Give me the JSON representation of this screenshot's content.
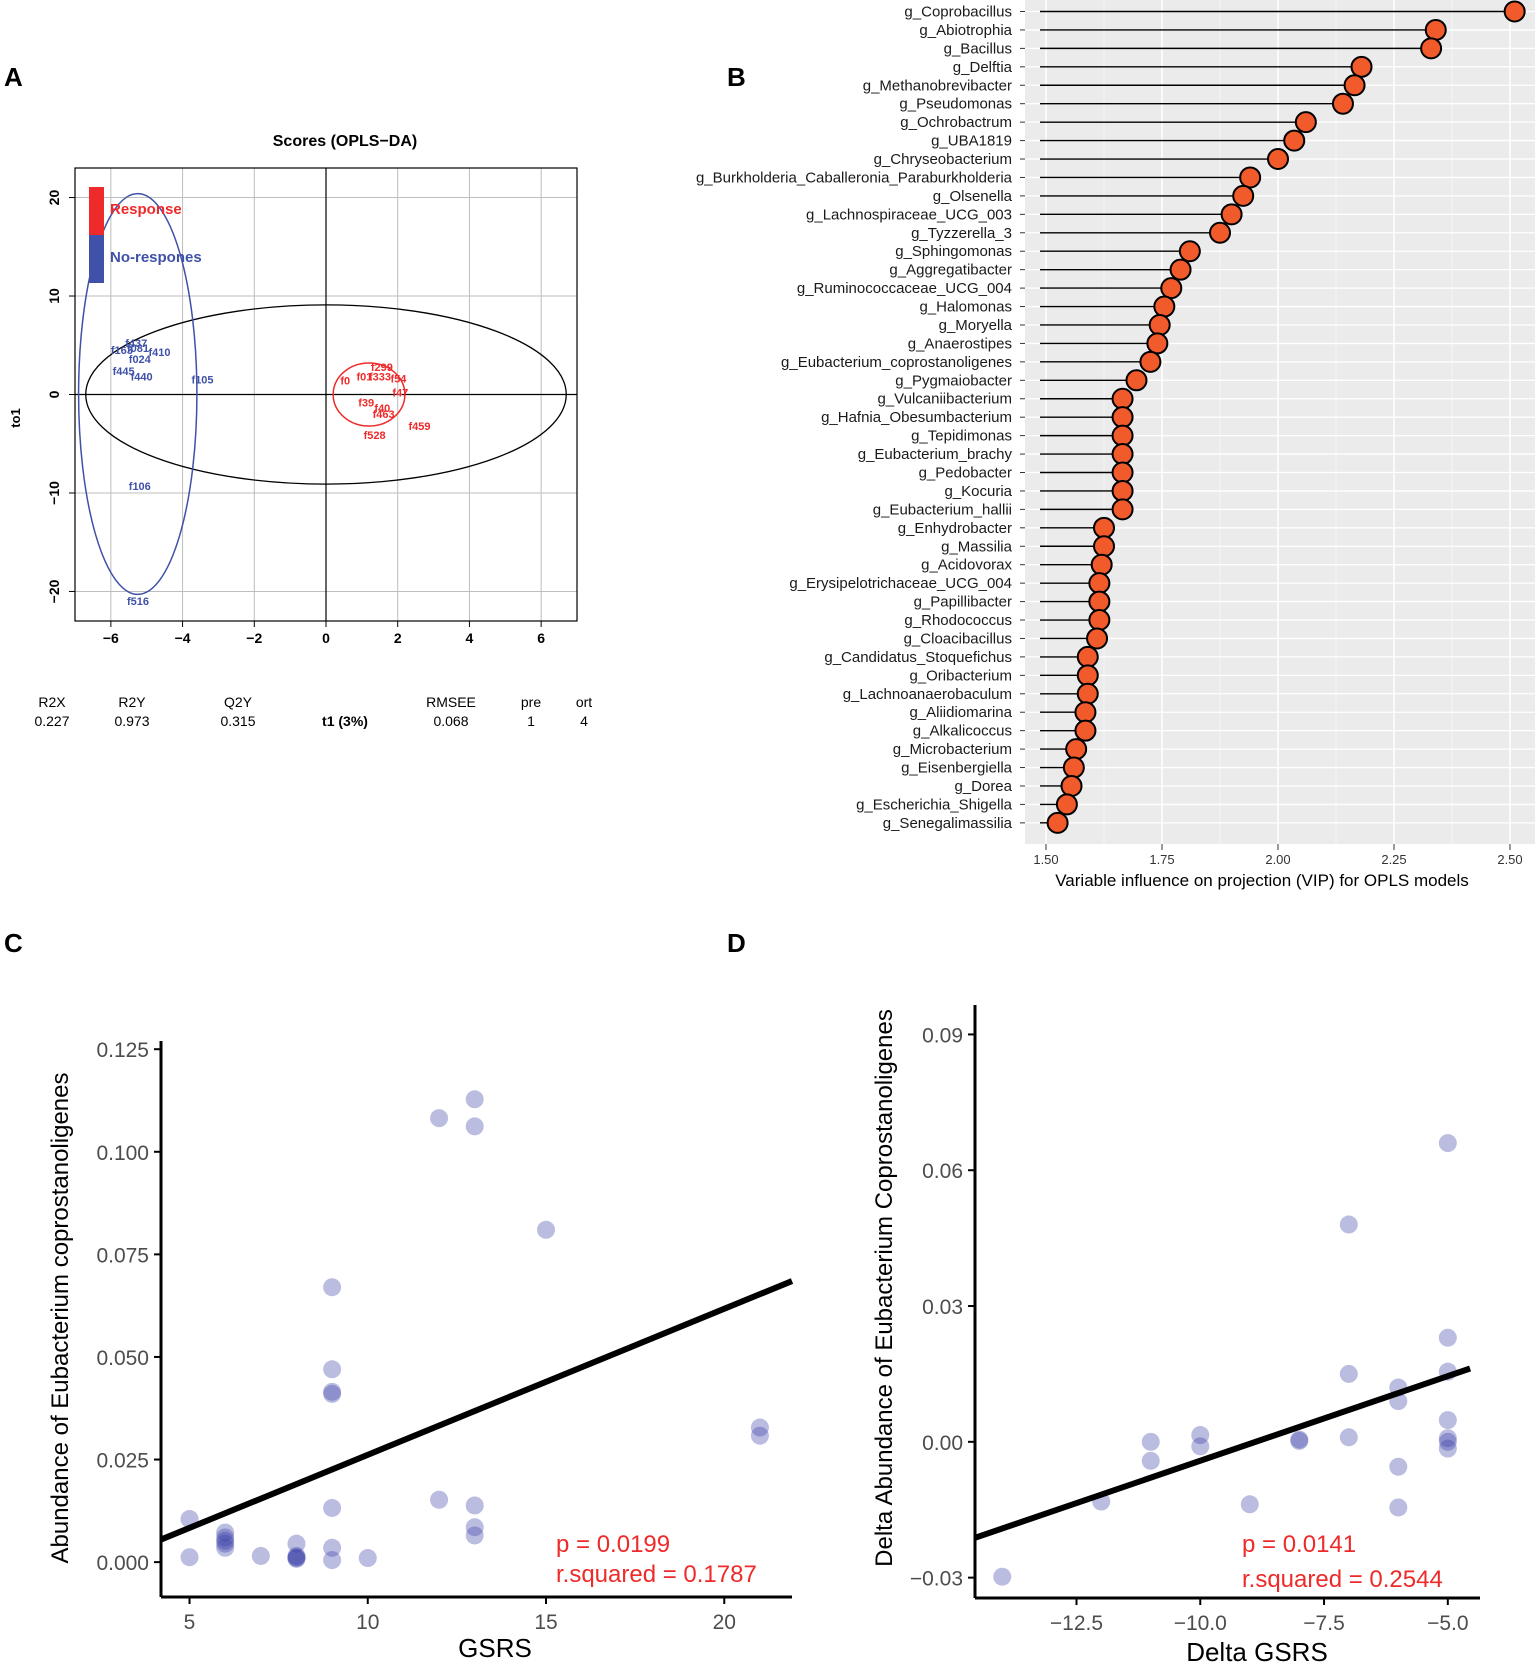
{
  "panels": {
    "a": "A",
    "b": "B",
    "c": "C",
    "d": "D"
  },
  "chart_data": [
    {
      "id": "A",
      "type": "scatter",
      "title": "Scores (OPLS−DA)",
      "xlabel": "t1 (3%)",
      "ylabel": "to1",
      "xlim": [
        -7,
        7
      ],
      "ylim": [
        -23,
        23
      ],
      "xticks": [
        -6,
        -4,
        -2,
        0,
        2,
        4,
        6
      ],
      "yticks": [
        20,
        10,
        0,
        -10,
        -20
      ],
      "xtick_labels": [
        "−6",
        "−4",
        "−2",
        "0",
        "2",
        "4",
        "6"
      ],
      "ytick_labels": [
        "20",
        "10",
        "0",
        "−10",
        "−20"
      ],
      "legend": [
        {
          "name": "Response",
          "color": "#ee2a2a"
        },
        {
          "name": "No-respones",
          "color": "#3f51a8"
        }
      ],
      "stats_headers": [
        "R2X",
        "R2Y",
        "Q2Y",
        "RMSEE",
        "pre",
        "ort"
      ],
      "stats_values": [
        "0.227",
        "0.973",
        "0.315",
        "0.068",
        "1",
        "4"
      ],
      "no_response_labels": [
        {
          "label": "f437",
          "x": -5.6,
          "y": 4.8
        },
        {
          "label": "f163",
          "x": -6.0,
          "y": 4.1
        },
        {
          "label": "f081",
          "x": -5.55,
          "y": 4.3
        },
        {
          "label": "f410",
          "x": -4.95,
          "y": 3.9
        },
        {
          "label": "f024",
          "x": -5.5,
          "y": 3.2
        },
        {
          "label": "f445",
          "x": -5.95,
          "y": 2.0
        },
        {
          "label": "f440",
          "x": -5.45,
          "y": 1.4
        },
        {
          "label": "f105",
          "x": -3.75,
          "y": 1.1
        },
        {
          "label": "f106",
          "x": -5.5,
          "y": -9.7
        },
        {
          "label": "f516",
          "x": -5.55,
          "y": -21.4
        }
      ],
      "response_labels": [
        {
          "label": "f299",
          "x": 1.25,
          "y": 2.4
        },
        {
          "label": "f0",
          "x": 0.4,
          "y": 1.0
        },
        {
          "label": "f01",
          "x": 0.85,
          "y": 1.4
        },
        {
          "label": "f333",
          "x": 1.2,
          "y": 1.4
        },
        {
          "label": "f54",
          "x": 1.8,
          "y": 1.2
        },
        {
          "label": "f47",
          "x": 1.85,
          "y": -0.2
        },
        {
          "label": "f39",
          "x": 0.9,
          "y": -1.2
        },
        {
          "label": "f40",
          "x": 1.35,
          "y": -1.8
        },
        {
          "label": "f463",
          "x": 1.3,
          "y": -2.4
        },
        {
          "label": "f528",
          "x": 1.05,
          "y": -4.5
        },
        {
          "label": "f459",
          "x": 2.3,
          "y": -3.6
        }
      ]
    },
    {
      "id": "B",
      "type": "lollipop",
      "xlabel": "Variable influence on projection (VIP) for OPLS models",
      "xlim": [
        1.5,
        2.5
      ],
      "xticks": [
        1.5,
        1.75,
        2.0,
        2.25,
        2.5
      ],
      "xtick_labels": [
        "1.50",
        "1.75",
        "2.00",
        "2.25",
        "2.50"
      ],
      "categories": [
        "g_Coprobacillus",
        "g_Abiotrophia",
        "g_Bacillus",
        "g_Delftia",
        "g_Methanobrevibacter",
        "g_Pseudomonas",
        "g_Ochrobactrum",
        "g_UBA1819",
        "g_Chryseobacterium",
        "g_Burkholderia_Caballeronia_Paraburkholderia",
        "g_Olsenella",
        "g_Lachnospiraceae_UCG_003",
        "g_Tyzzerella_3",
        "g_Sphingomonas",
        "g_Aggregatibacter",
        "g_Ruminococcaceae_UCG_004",
        "g_Halomonas",
        "g_Moryella",
        "g_Anaerostipes",
        "g_Eubacterium_coprostanoligenes",
        "g_Pygmaiobacter",
        "g_Vulcaniibacterium",
        "g_Hafnia_Obesumbacterium",
        "g_Tepidimonas",
        "g_Eubacterium_brachy",
        "g_Pedobacter",
        "g_Kocuria",
        "g_Eubacterium_hallii",
        "g_Enhydrobacter",
        "g_Massilia",
        "g_Acidovorax",
        "g_Erysipelotrichaceae_UCG_004",
        "g_Papillibacter",
        "g_Rhodococcus",
        "g_Cloacibacillus",
        "g_Candidatus_Stoquefichus",
        "g_Oribacterium",
        "g_Lachnoanaerobaculum",
        "g_Aliidiomarina",
        "g_Alkalicoccus",
        "g_Microbacterium",
        "g_Eisenbergiella",
        "g_Dorea",
        "g_Escherichia_Shigella",
        "g_Senegalimassilia"
      ],
      "values": [
        2.51,
        2.34,
        2.33,
        2.18,
        2.165,
        2.14,
        2.06,
        2.035,
        2.0,
        1.94,
        1.925,
        1.9,
        1.875,
        1.81,
        1.79,
        1.77,
        1.755,
        1.745,
        1.74,
        1.725,
        1.695,
        1.665,
        1.665,
        1.665,
        1.665,
        1.665,
        1.665,
        1.665,
        1.625,
        1.625,
        1.62,
        1.615,
        1.615,
        1.615,
        1.61,
        1.59,
        1.59,
        1.59,
        1.585,
        1.585,
        1.565,
        1.56,
        1.555,
        1.545,
        1.525
      ]
    },
    {
      "id": "C",
      "type": "scatter",
      "xlabel": "GSRS",
      "ylabel": "Abundance of Eubacterium coprostanoligenes",
      "xlim": [
        4.2,
        21.9
      ],
      "ylim": [
        -0.0085,
        0.127
      ],
      "xticks": [
        5,
        10,
        15,
        20
      ],
      "yticks": [
        0.0,
        0.025,
        0.05,
        0.075,
        0.1,
        0.125
      ],
      "xtick_labels": [
        "5",
        "10",
        "15",
        "20"
      ],
      "ytick_labels": [
        "0.000",
        "0.025",
        "0.050",
        "0.075",
        "0.100",
        "0.125"
      ],
      "regression": {
        "x1": 4.2,
        "y1": 0.0055,
        "x2": 21.9,
        "y2": 0.0685
      },
      "annotation": {
        "p": "p = 0.0199",
        "r2": "r.squared = 0.1787"
      },
      "points": [
        {
          "x": 5,
          "y": 0.0105
        },
        {
          "x": 5,
          "y": 0.0012
        },
        {
          "x": 6,
          "y": 0.0072
        },
        {
          "x": 6,
          "y": 0.006
        },
        {
          "x": 6,
          "y": 0.0052
        },
        {
          "x": 6,
          "y": 0.0045
        },
        {
          "x": 6,
          "y": 0.0035
        },
        {
          "x": 7,
          "y": 0.0015
        },
        {
          "x": 8,
          "y": 0.0045
        },
        {
          "x": 8,
          "y": 0.0015
        },
        {
          "x": 8,
          "y": 0.0012
        },
        {
          "x": 8,
          "y": 0.001
        },
        {
          "x": 8,
          "y": 0.0008
        },
        {
          "x": 9,
          "y": 0.067
        },
        {
          "x": 9,
          "y": 0.047
        },
        {
          "x": 9,
          "y": 0.0415
        },
        {
          "x": 9,
          "y": 0.041
        },
        {
          "x": 9,
          "y": 0.0132
        },
        {
          "x": 9,
          "y": 0.0035
        },
        {
          "x": 9,
          "y": 0.0005
        },
        {
          "x": 10,
          "y": 0.001
        },
        {
          "x": 12,
          "y": 0.1082
        },
        {
          "x": 12,
          "y": 0.0152
        },
        {
          "x": 13,
          "y": 0.1128
        },
        {
          "x": 13,
          "y": 0.1062
        },
        {
          "x": 13,
          "y": 0.0138
        },
        {
          "x": 13,
          "y": 0.0085
        },
        {
          "x": 13,
          "y": 0.0065
        },
        {
          "x": 15,
          "y": 0.081
        },
        {
          "x": 21,
          "y": 0.0328
        },
        {
          "x": 21,
          "y": 0.0308
        }
      ]
    },
    {
      "id": "D",
      "type": "scatter",
      "xlabel": "Delta GSRS",
      "ylabel": "Delta Abundance of Eubacterium Coprostanoligenes",
      "xlim": [
        -14.55,
        -4.35
      ],
      "ylim": [
        -0.0345,
        0.0965
      ],
      "xticks": [
        -12.5,
        -10.0,
        -7.5,
        -5.0
      ],
      "yticks": [
        -0.03,
        0.0,
        0.03,
        0.06,
        0.09
      ],
      "xtick_labels": [
        "−12.5",
        "−10.0",
        "−7.5",
        "−5.0"
      ],
      "ytick_labels": [
        "−0.03",
        "0.00",
        "0.03",
        "0.06",
        "0.09"
      ],
      "regression": {
        "x1": -14.55,
        "y1": -0.0212,
        "x2": -4.55,
        "y2": 0.0162
      },
      "annotation": {
        "p": "p = 0.0141",
        "r2": "r.squared = 0.2544"
      },
      "points": [
        {
          "x": -14,
          "y": -0.0298
        },
        {
          "x": -12,
          "y": -0.0132
        },
        {
          "x": -11,
          "y": 0.0
        },
        {
          "x": -11,
          "y": -0.0042
        },
        {
          "x": -10,
          "y": 0.0015
        },
        {
          "x": -10,
          "y": -0.001
        },
        {
          "x": -9,
          "y": -0.0138
        },
        {
          "x": -8,
          "y": 0.0005
        },
        {
          "x": -8,
          "y": 0.0002
        },
        {
          "x": -7,
          "y": 0.048
        },
        {
          "x": -7,
          "y": 0.015
        },
        {
          "x": -7,
          "y": 0.001
        },
        {
          "x": -6,
          "y": 0.012
        },
        {
          "x": -6,
          "y": 0.009
        },
        {
          "x": -6,
          "y": -0.0055
        },
        {
          "x": -6,
          "y": -0.0145
        },
        {
          "x": -5,
          "y": 0.066
        },
        {
          "x": -5,
          "y": 0.023
        },
        {
          "x": -5,
          "y": 0.0155
        },
        {
          "x": -5,
          "y": 0.0048
        },
        {
          "x": -5,
          "y": 0.0008
        },
        {
          "x": -5,
          "y": 0.0
        },
        {
          "x": -5,
          "y": -0.0015
        }
      ]
    }
  ]
}
